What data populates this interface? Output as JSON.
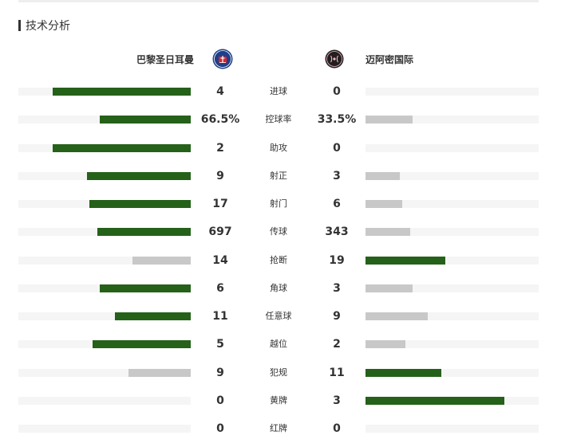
{
  "section_title": "技术分析",
  "colors": {
    "leader": "#256119",
    "trailer": "#c8c8c8",
    "track": "#f5f5f5"
  },
  "teams": {
    "home": {
      "name": "巴黎圣日耳曼",
      "logo_icon": "psg-crest-icon",
      "logo_color": "#1e3f8a"
    },
    "away": {
      "name": "迈阿密国际",
      "logo_icon": "inter-miami-crest-icon",
      "logo_color": "#231f20"
    }
  },
  "stats": [
    {
      "label": "进球",
      "home": "4",
      "away": "0",
      "home_ratio": 0.8,
      "away_ratio": 0.0,
      "leader": "home"
    },
    {
      "label": "控球率",
      "home": "66.5%",
      "away": "33.5%",
      "home_ratio": 0.53,
      "away_ratio": 0.27,
      "leader": "home"
    },
    {
      "label": "助攻",
      "home": "2",
      "away": "0",
      "home_ratio": 0.8,
      "away_ratio": 0.0,
      "leader": "home"
    },
    {
      "label": "射正",
      "home": "9",
      "away": "3",
      "home_ratio": 0.6,
      "away_ratio": 0.2,
      "leader": "home"
    },
    {
      "label": "射门",
      "home": "17",
      "away": "6",
      "home_ratio": 0.59,
      "away_ratio": 0.21,
      "leader": "home"
    },
    {
      "label": "传球",
      "home": "697",
      "away": "343",
      "home_ratio": 0.54,
      "away_ratio": 0.26,
      "leader": "home"
    },
    {
      "label": "抢断",
      "home": "14",
      "away": "19",
      "home_ratio": 0.34,
      "away_ratio": 0.46,
      "leader": "away"
    },
    {
      "label": "角球",
      "home": "6",
      "away": "3",
      "home_ratio": 0.53,
      "away_ratio": 0.27,
      "leader": "home"
    },
    {
      "label": "任意球",
      "home": "11",
      "away": "9",
      "home_ratio": 0.44,
      "away_ratio": 0.36,
      "leader": "home"
    },
    {
      "label": "越位",
      "home": "5",
      "away": "2",
      "home_ratio": 0.57,
      "away_ratio": 0.23,
      "leader": "home"
    },
    {
      "label": "犯规",
      "home": "9",
      "away": "11",
      "home_ratio": 0.36,
      "away_ratio": 0.44,
      "leader": "away"
    },
    {
      "label": "黄牌",
      "home": "0",
      "away": "3",
      "home_ratio": 0.0,
      "away_ratio": 0.8,
      "leader": "away"
    },
    {
      "label": "红牌",
      "home": "0",
      "away": "0",
      "home_ratio": 0.0,
      "away_ratio": 0.0,
      "leader": "none"
    }
  ]
}
